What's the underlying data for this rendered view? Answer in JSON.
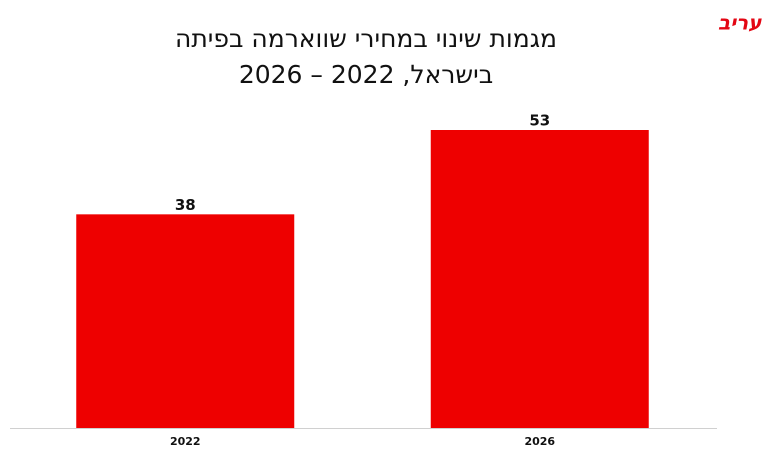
{
  "brand": "מעריב",
  "chart_data": {
    "type": "bar",
    "title": [
      "מגמות שינוי במחירי שווארמה בפיתה",
      "בישראל, 2022 – 2026"
    ],
    "categories": [
      "2022",
      "2026"
    ],
    "values": [
      38,
      53
    ],
    "color": "#ee0000"
  }
}
